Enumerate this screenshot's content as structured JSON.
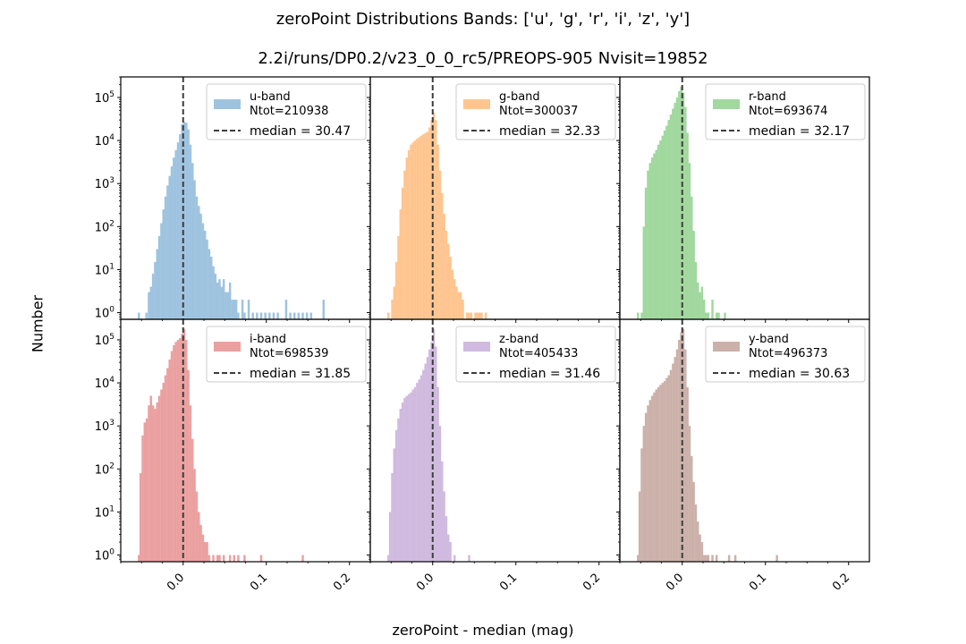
{
  "title": "zeroPoint Distributions  Bands: ['u', 'g', 'r', 'i', 'z', 'y']",
  "subtitle": "2.2i/runs/DP0.2/v23_0_0_rc5/PREOPS-905   Nvisit=19852",
  "xlabel": "zeroPoint - median (mag)",
  "ylabel": "Number",
  "chart_data": {
    "type": "bar",
    "layout": "2x3 grid of histograms, shared x and y axes",
    "x_ticks": [
      "0.0",
      "0.1",
      "0.2"
    ],
    "xlim": [
      -0.075,
      0.225
    ],
    "y_scale": "log",
    "y_ticks": [
      "10^0",
      "10^1",
      "10^2",
      "10^3",
      "10^4",
      "10^5"
    ],
    "ylim": [
      0.7,
      300000
    ],
    "legend_position": "upper right",
    "median_line_x": 0.0,
    "panels": [
      {
        "band": "u-band",
        "ntot_label": "Ntot=210938",
        "median_label": "median = 30.47",
        "color": "#9ec3df",
        "bins": [
          [
            -0.0545,
            1
          ],
          [
            -0.0455,
            1
          ],
          [
            -0.0425,
            3
          ],
          [
            -0.04,
            4
          ],
          [
            -0.0375,
            8
          ],
          [
            -0.035,
            15
          ],
          [
            -0.0325,
            30
          ],
          [
            -0.03,
            60
          ],
          [
            -0.0275,
            120
          ],
          [
            -0.025,
            250
          ],
          [
            -0.0225,
            500
          ],
          [
            -0.02,
            900
          ],
          [
            -0.0175,
            1500
          ],
          [
            -0.015,
            2500
          ],
          [
            -0.0125,
            4000
          ],
          [
            -0.01,
            6000
          ],
          [
            -0.0075,
            9000
          ],
          [
            -0.005,
            14000
          ],
          [
            -0.0025,
            24000
          ],
          [
            0.0,
            27000
          ],
          [
            0.0025,
            26000
          ],
          [
            0.005,
            18000
          ],
          [
            0.0075,
            8000
          ],
          [
            0.01,
            3000
          ],
          [
            0.0125,
            1200
          ],
          [
            0.015,
            500
          ],
          [
            0.0175,
            300
          ],
          [
            0.02,
            200
          ],
          [
            0.0225,
            120
          ],
          [
            0.025,
            80
          ],
          [
            0.0275,
            50
          ],
          [
            0.03,
            30
          ],
          [
            0.0325,
            20
          ],
          [
            0.035,
            12
          ],
          [
            0.0375,
            8
          ],
          [
            0.04,
            5
          ],
          [
            0.0425,
            6
          ],
          [
            0.045,
            4
          ],
          [
            0.0475,
            6
          ],
          [
            0.05,
            3
          ],
          [
            0.0525,
            3
          ],
          [
            0.055,
            5
          ],
          [
            0.0575,
            2
          ],
          [
            0.06,
            2
          ],
          [
            0.0625,
            2
          ],
          [
            0.065,
            1
          ],
          [
            0.07,
            2
          ],
          [
            0.0725,
            1
          ],
          [
            0.0775,
            2
          ],
          [
            0.0825,
            1
          ],
          [
            0.0875,
            1
          ],
          [
            0.0925,
            1
          ],
          [
            0.0975,
            1
          ],
          [
            0.1025,
            1
          ],
          [
            0.1075,
            1
          ],
          [
            0.1125,
            1
          ],
          [
            0.1225,
            2
          ],
          [
            0.1275,
            1
          ],
          [
            0.1325,
            1
          ],
          [
            0.1375,
            1
          ],
          [
            0.1425,
            1
          ],
          [
            0.1475,
            1
          ],
          [
            0.1525,
            1
          ],
          [
            0.1675,
            2
          ],
          [
            0.2245,
            1
          ]
        ]
      },
      {
        "band": "g-band",
        "ntot_label": "Ntot=300037",
        "median_label": "median = 32.33",
        "color": "#ffc590",
        "bins": [
          [
            -0.0545,
            1
          ],
          [
            -0.05,
            2
          ],
          [
            -0.0475,
            4
          ],
          [
            -0.045,
            15
          ],
          [
            -0.0425,
            60
          ],
          [
            -0.04,
            250
          ],
          [
            -0.0375,
            800
          ],
          [
            -0.035,
            2000
          ],
          [
            -0.0325,
            4000
          ],
          [
            -0.03,
            6000
          ],
          [
            -0.0275,
            8000
          ],
          [
            -0.025,
            9000
          ],
          [
            -0.0225,
            10000
          ],
          [
            -0.02,
            11000
          ],
          [
            -0.0175,
            12000
          ],
          [
            -0.015,
            13000
          ],
          [
            -0.0125,
            14000
          ],
          [
            -0.01,
            15000
          ],
          [
            -0.0075,
            16000
          ],
          [
            -0.005,
            20000
          ],
          [
            -0.0025,
            30000
          ],
          [
            0.0,
            45000
          ],
          [
            0.0025,
            30000
          ],
          [
            0.005,
            8000
          ],
          [
            0.0075,
            2000
          ],
          [
            0.01,
            600
          ],
          [
            0.0125,
            200
          ],
          [
            0.015,
            80
          ],
          [
            0.0175,
            40
          ],
          [
            0.02,
            20
          ],
          [
            0.0225,
            10
          ],
          [
            0.025,
            6
          ],
          [
            0.0275,
            4
          ],
          [
            0.03,
            3
          ],
          [
            0.0325,
            3
          ],
          [
            0.035,
            2
          ],
          [
            0.04,
            1
          ],
          [
            0.0425,
            1
          ],
          [
            0.045,
            1
          ],
          [
            0.05,
            1
          ],
          [
            0.0525,
            1
          ],
          [
            0.055,
            1
          ],
          [
            0.0575,
            1
          ],
          [
            0.0625,
            1
          ]
        ]
      },
      {
        "band": "r-band",
        "ntot_label": "Ntot=693674",
        "median_label": "median = 32.17",
        "color": "#a0d89e",
        "bins": [
          [
            -0.0545,
            1
          ],
          [
            -0.05,
            1
          ],
          [
            -0.0475,
            100
          ],
          [
            -0.045,
            800
          ],
          [
            -0.0425,
            2000
          ],
          [
            -0.04,
            3000
          ],
          [
            -0.0375,
            4000
          ],
          [
            -0.035,
            5000
          ],
          [
            -0.0325,
            6000
          ],
          [
            -0.03,
            8000
          ],
          [
            -0.0275,
            10000
          ],
          [
            -0.025,
            13000
          ],
          [
            -0.0225,
            17000
          ],
          [
            -0.02,
            22000
          ],
          [
            -0.0175,
            30000
          ],
          [
            -0.015,
            40000
          ],
          [
            -0.0125,
            55000
          ],
          [
            -0.01,
            75000
          ],
          [
            -0.0075,
            100000
          ],
          [
            -0.005,
            140000
          ],
          [
            -0.0025,
            180000
          ],
          [
            0.0,
            130000
          ],
          [
            0.0025,
            60000
          ],
          [
            0.005,
            15000
          ],
          [
            0.0075,
            3000
          ],
          [
            0.01,
            500
          ],
          [
            0.0125,
            80
          ],
          [
            0.015,
            15
          ],
          [
            0.0175,
            5
          ],
          [
            0.02,
            3
          ],
          [
            0.0225,
            4
          ],
          [
            0.025,
            2
          ],
          [
            0.0275,
            1
          ],
          [
            0.03,
            1
          ],
          [
            0.035,
            2
          ],
          [
            0.04,
            1
          ],
          [
            0.0425,
            1
          ],
          [
            0.05,
            1
          ]
        ]
      },
      {
        "band": "i-band",
        "ntot_label": "Ntot=698539",
        "median_label": "median = 31.85",
        "color": "#eba0a0",
        "bins": [
          [
            -0.0545,
            1
          ],
          [
            -0.0525,
            80
          ],
          [
            -0.05,
            600
          ],
          [
            -0.0475,
            1200
          ],
          [
            -0.045,
            1500
          ],
          [
            -0.0425,
            3000
          ],
          [
            -0.04,
            5000
          ],
          [
            -0.0375,
            3000
          ],
          [
            -0.035,
            2500
          ],
          [
            -0.0325,
            3500
          ],
          [
            -0.03,
            5000
          ],
          [
            -0.0275,
            7000
          ],
          [
            -0.025,
            10000
          ],
          [
            -0.0225,
            15000
          ],
          [
            -0.02,
            22000
          ],
          [
            -0.0175,
            35000
          ],
          [
            -0.015,
            55000
          ],
          [
            -0.0125,
            75000
          ],
          [
            -0.01,
            90000
          ],
          [
            -0.0075,
            100000
          ],
          [
            -0.005,
            110000
          ],
          [
            -0.0025,
            140000
          ],
          [
            0.0,
            180000
          ],
          [
            0.0025,
            100000
          ],
          [
            0.005,
            20000
          ],
          [
            0.0075,
            3000
          ],
          [
            0.01,
            500
          ],
          [
            0.0125,
            100
          ],
          [
            0.015,
            30
          ],
          [
            0.0175,
            10
          ],
          [
            0.02,
            5
          ],
          [
            0.0225,
            3
          ],
          [
            0.025,
            2
          ],
          [
            0.0275,
            2
          ],
          [
            0.03,
            1
          ],
          [
            0.035,
            1
          ],
          [
            0.04,
            1
          ],
          [
            0.0425,
            1
          ],
          [
            0.0475,
            1
          ],
          [
            0.055,
            1
          ],
          [
            0.06,
            1
          ],
          [
            0.065,
            1
          ],
          [
            0.0725,
            1
          ],
          [
            0.0925,
            1
          ],
          [
            0.1425,
            1
          ]
        ]
      },
      {
        "band": "z-band",
        "ntot_label": "Ntot=405433",
        "median_label": "median = 31.46",
        "color": "#d0badf",
        "bins": [
          [
            -0.0545,
            1
          ],
          [
            -0.0525,
            10
          ],
          [
            -0.05,
            80
          ],
          [
            -0.0475,
            300
          ],
          [
            -0.045,
            800
          ],
          [
            -0.0425,
            1500
          ],
          [
            -0.04,
            2500
          ],
          [
            -0.0375,
            3500
          ],
          [
            -0.035,
            4500
          ],
          [
            -0.0325,
            5000
          ],
          [
            -0.03,
            5500
          ],
          [
            -0.0275,
            6000
          ],
          [
            -0.025,
            7000
          ],
          [
            -0.0225,
            8000
          ],
          [
            -0.02,
            10000
          ],
          [
            -0.0175,
            12000
          ],
          [
            -0.015,
            15000
          ],
          [
            -0.0125,
            20000
          ],
          [
            -0.01,
            28000
          ],
          [
            -0.0075,
            40000
          ],
          [
            -0.005,
            60000
          ],
          [
            -0.0025,
            90000
          ],
          [
            0.0,
            180000
          ],
          [
            0.0025,
            70000
          ],
          [
            0.005,
            8000
          ],
          [
            0.0075,
            1000
          ],
          [
            0.01,
            150
          ],
          [
            0.0125,
            30
          ],
          [
            0.015,
            8
          ],
          [
            0.0175,
            3
          ],
          [
            0.02,
            2
          ],
          [
            0.025,
            1
          ],
          [
            0.0425,
            1
          ]
        ]
      },
      {
        "band": "y-band",
        "ntot_label": "Ntot=496373",
        "median_label": "median = 30.63",
        "color": "#cbb1a9",
        "bins": [
          [
            -0.0545,
            1
          ],
          [
            -0.0525,
            30
          ],
          [
            -0.05,
            300
          ],
          [
            -0.0475,
            1000
          ],
          [
            -0.045,
            2000
          ],
          [
            -0.0425,
            3000
          ],
          [
            -0.04,
            4000
          ],
          [
            -0.0375,
            5000
          ],
          [
            -0.035,
            6000
          ],
          [
            -0.0325,
            7000
          ],
          [
            -0.03,
            8000
          ],
          [
            -0.0275,
            9000
          ],
          [
            -0.025,
            10000
          ],
          [
            -0.0225,
            11000
          ],
          [
            -0.02,
            13000
          ],
          [
            -0.0175,
            15000
          ],
          [
            -0.015,
            20000
          ],
          [
            -0.0125,
            28000
          ],
          [
            -0.01,
            40000
          ],
          [
            -0.0075,
            60000
          ],
          [
            -0.005,
            100000
          ],
          [
            -0.0025,
            150000
          ],
          [
            0.0,
            180000
          ],
          [
            0.0025,
            60000
          ],
          [
            0.005,
            8000
          ],
          [
            0.0075,
            1000
          ],
          [
            0.01,
            200
          ],
          [
            0.0125,
            50
          ],
          [
            0.015,
            15
          ],
          [
            0.0175,
            6
          ],
          [
            0.02,
            3
          ],
          [
            0.0225,
            2
          ],
          [
            0.025,
            1
          ],
          [
            0.0275,
            1
          ],
          [
            0.03,
            1
          ],
          [
            0.035,
            1
          ],
          [
            0.04,
            1
          ],
          [
            0.055,
            1
          ],
          [
            0.0625,
            1
          ],
          [
            0.1125,
            1
          ]
        ]
      }
    ]
  }
}
